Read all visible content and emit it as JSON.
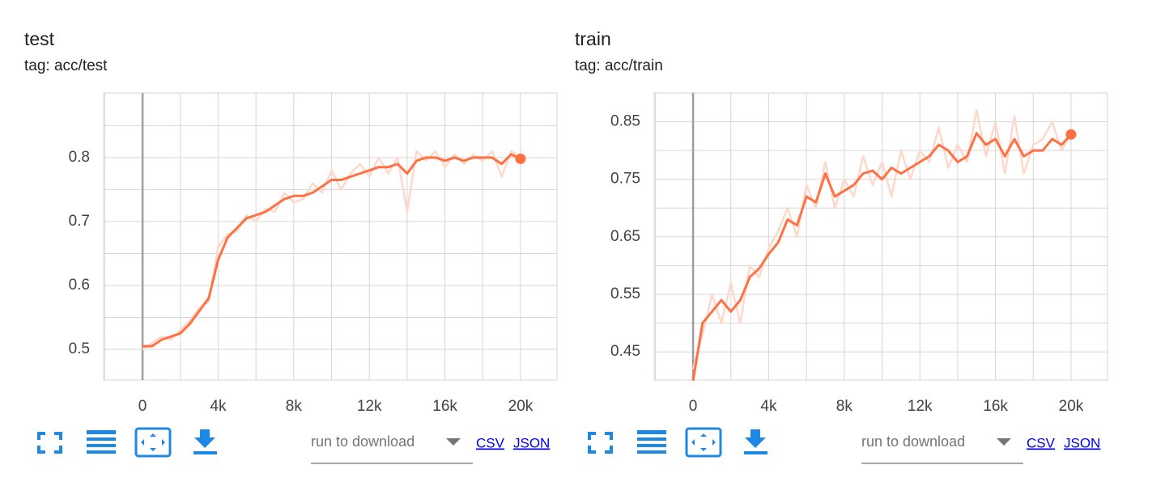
{
  "chart_data": [
    {
      "type": "line",
      "title": "test",
      "subtitle": "tag: acc/test",
      "x": [
        0,
        500,
        1000,
        1500,
        2000,
        2500,
        3000,
        3500,
        4000,
        4500,
        5000,
        5500,
        6000,
        6500,
        7000,
        7500,
        8000,
        8500,
        9000,
        9500,
        10000,
        10500,
        11000,
        11500,
        12000,
        12500,
        13000,
        13500,
        14000,
        14500,
        15000,
        15500,
        16000,
        16500,
        17000,
        17500,
        18000,
        18500,
        19000,
        19500,
        20000
      ],
      "series": [
        {
          "color": "#fdd9cc",
          "values": [
            0.5,
            0.51,
            0.52,
            0.515,
            0.53,
            0.545,
            0.565,
            0.575,
            0.66,
            0.68,
            0.685,
            0.71,
            0.7,
            0.72,
            0.715,
            0.745,
            0.73,
            0.735,
            0.76,
            0.745,
            0.78,
            0.75,
            0.775,
            0.79,
            0.77,
            0.8,
            0.775,
            0.8,
            0.715,
            0.81,
            0.795,
            0.81,
            0.785,
            0.805,
            0.79,
            0.805,
            0.795,
            0.81,
            0.77,
            0.81,
            0.8
          ]
        },
        {
          "color": "#ff7043",
          "values": [
            0.505,
            0.505,
            0.515,
            0.52,
            0.525,
            0.54,
            0.56,
            0.58,
            0.64,
            0.675,
            0.69,
            0.705,
            0.71,
            0.715,
            0.725,
            0.735,
            0.74,
            0.74,
            0.745,
            0.755,
            0.765,
            0.765,
            0.77,
            0.775,
            0.78,
            0.785,
            0.785,
            0.79,
            0.775,
            0.795,
            0.8,
            0.8,
            0.795,
            0.8,
            0.795,
            0.8,
            0.8,
            0.8,
            0.79,
            0.805,
            0.798
          ]
        }
      ],
      "xlim": [
        -2060,
        21930
      ],
      "ylim": [
        0.452,
        0.901
      ],
      "xticks": [
        0,
        {
          "value": 4000,
          "label": "4k"
        },
        {
          "value": 8000,
          "label": "8k"
        },
        {
          "value": 12000,
          "label": "12k"
        },
        {
          "value": 16000,
          "label": "16k"
        },
        {
          "value": 20000,
          "label": "20k"
        }
      ],
      "yticks": [
        0.5,
        0.6,
        0.7,
        0.8
      ],
      "xgrid": [
        -2000,
        2000,
        4000,
        6000,
        8000,
        10000,
        12000,
        14000,
        16000,
        18000,
        20000
      ],
      "ygrid": [
        0.5,
        0.55,
        0.6,
        0.65,
        0.7,
        0.75,
        0.8,
        0.85
      ],
      "grid": true
    },
    {
      "type": "line",
      "title": "train",
      "subtitle": "tag: acc/train",
      "x": [
        0,
        500,
        1000,
        1500,
        2000,
        2500,
        3000,
        3500,
        4000,
        4500,
        5000,
        5500,
        6000,
        6500,
        7000,
        7500,
        8000,
        8500,
        9000,
        9500,
        10000,
        10500,
        11000,
        11500,
        12000,
        12500,
        13000,
        13500,
        14000,
        14500,
        15000,
        15500,
        16000,
        16500,
        17000,
        17500,
        18000,
        18500,
        19000,
        19500,
        20000
      ],
      "series": [
        {
          "color": "#fdd9cc",
          "values": [
            0.42,
            0.48,
            0.55,
            0.5,
            0.57,
            0.5,
            0.6,
            0.58,
            0.63,
            0.66,
            0.7,
            0.65,
            0.74,
            0.7,
            0.78,
            0.7,
            0.75,
            0.72,
            0.79,
            0.74,
            0.78,
            0.72,
            0.8,
            0.75,
            0.8,
            0.78,
            0.84,
            0.77,
            0.81,
            0.78,
            0.87,
            0.79,
            0.85,
            0.76,
            0.86,
            0.76,
            0.81,
            0.82,
            0.85,
            0.8,
            0.83
          ]
        },
        {
          "color": "#ff7043",
          "values": [
            0.4,
            0.5,
            0.52,
            0.54,
            0.52,
            0.54,
            0.58,
            0.595,
            0.62,
            0.64,
            0.68,
            0.67,
            0.72,
            0.71,
            0.76,
            0.72,
            0.73,
            0.74,
            0.76,
            0.765,
            0.75,
            0.77,
            0.76,
            0.77,
            0.78,
            0.79,
            0.81,
            0.8,
            0.78,
            0.79,
            0.83,
            0.81,
            0.82,
            0.79,
            0.82,
            0.79,
            0.8,
            0.8,
            0.82,
            0.81,
            0.828
          ]
        }
      ],
      "xlim": [
        -2060,
        21930
      ],
      "ylim": [
        0.401,
        0.9
      ],
      "xticks": [
        0,
        {
          "value": 4000,
          "label": "4k"
        },
        {
          "value": 8000,
          "label": "8k"
        },
        {
          "value": 12000,
          "label": "12k"
        },
        {
          "value": 16000,
          "label": "16k"
        },
        {
          "value": 20000,
          "label": "20k"
        }
      ],
      "yticks": [
        0.45,
        0.55,
        0.65,
        0.75,
        0.85
      ],
      "xgrid": [
        -2000,
        2000,
        4000,
        6000,
        8000,
        10000,
        12000,
        14000,
        16000,
        18000,
        20000
      ],
      "ygrid": [
        0.45,
        0.5,
        0.55,
        0.6,
        0.65,
        0.7,
        0.75,
        0.8,
        0.85
      ],
      "grid": true
    }
  ],
  "downloads": [
    {
      "dropdown": "run to download",
      "csv": "CSV",
      "json": "JSON"
    },
    {
      "dropdown": "run to download",
      "csv": "CSV",
      "json": "JSON"
    }
  ]
}
